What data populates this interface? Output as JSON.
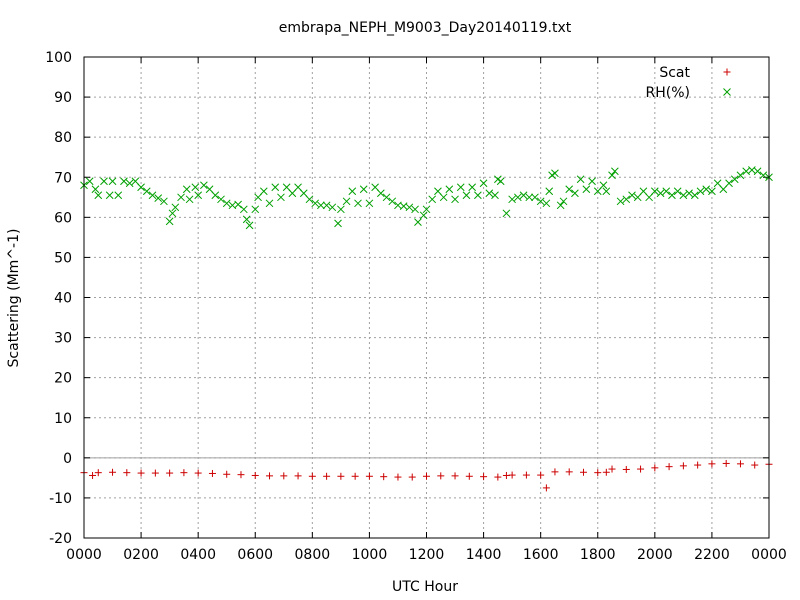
{
  "chart_data": {
    "type": "scatter",
    "title": "embrapa_NEPH_M9003_Day20140119.txt",
    "xlabel": "UTC Hour",
    "ylabel": "Scattering (Mm^-1)",
    "xlim": [
      0,
      24
    ],
    "ylim": [
      -20,
      100
    ],
    "xticks": [
      0,
      2,
      4,
      6,
      8,
      10,
      12,
      14,
      16,
      18,
      20,
      22,
      24
    ],
    "xtick_labels": [
      "0000",
      "0200",
      "0400",
      "0600",
      "0800",
      "1000",
      "1200",
      "1400",
      "1600",
      "1800",
      "2000",
      "2200",
      "0000"
    ],
    "yticks": [
      -20,
      -10,
      0,
      10,
      20,
      30,
      40,
      50,
      60,
      70,
      80,
      90,
      100
    ],
    "grid": true,
    "zero_line": true,
    "legend_position": "top-right",
    "series": [
      {
        "name": "Scat",
        "marker": "plus",
        "color": "#cc0000",
        "points": [
          [
            0.0,
            -3.7
          ],
          [
            0.3,
            -4.4
          ],
          [
            0.5,
            -3.7
          ],
          [
            1.0,
            -3.6
          ],
          [
            1.5,
            -3.7
          ],
          [
            2.0,
            -3.8
          ],
          [
            2.5,
            -3.8
          ],
          [
            3.0,
            -3.8
          ],
          [
            3.5,
            -3.7
          ],
          [
            4.0,
            -3.8
          ],
          [
            4.5,
            -3.9
          ],
          [
            5.0,
            -4.1
          ],
          [
            5.5,
            -4.2
          ],
          [
            6.0,
            -4.4
          ],
          [
            6.5,
            -4.5
          ],
          [
            7.0,
            -4.5
          ],
          [
            7.5,
            -4.5
          ],
          [
            8.0,
            -4.6
          ],
          [
            8.5,
            -4.6
          ],
          [
            9.0,
            -4.6
          ],
          [
            9.5,
            -4.6
          ],
          [
            10.0,
            -4.6
          ],
          [
            10.5,
            -4.7
          ],
          [
            11.0,
            -4.8
          ],
          [
            11.5,
            -4.8
          ],
          [
            12.0,
            -4.6
          ],
          [
            12.5,
            -4.5
          ],
          [
            13.0,
            -4.5
          ],
          [
            13.5,
            -4.6
          ],
          [
            14.0,
            -4.7
          ],
          [
            14.5,
            -4.8
          ],
          [
            14.8,
            -4.4
          ],
          [
            15.0,
            -4.3
          ],
          [
            15.5,
            -4.3
          ],
          [
            16.0,
            -4.3
          ],
          [
            16.2,
            -7.5
          ],
          [
            16.5,
            -3.5
          ],
          [
            17.0,
            -3.5
          ],
          [
            17.5,
            -3.6
          ],
          [
            18.0,
            -3.7
          ],
          [
            18.3,
            -3.6
          ],
          [
            18.5,
            -2.8
          ],
          [
            19.0,
            -2.9
          ],
          [
            19.5,
            -2.8
          ],
          [
            20.0,
            -2.5
          ],
          [
            20.5,
            -2.2
          ],
          [
            21.0,
            -2.0
          ],
          [
            21.5,
            -1.8
          ],
          [
            22.0,
            -1.5
          ],
          [
            22.5,
            -1.4
          ],
          [
            23.0,
            -1.5
          ],
          [
            23.5,
            -1.8
          ],
          [
            24.0,
            -1.6
          ]
        ]
      },
      {
        "name": "RH(%)",
        "marker": "cross",
        "color": "#00a000",
        "points": [
          [
            0.0,
            68.0
          ],
          [
            0.2,
            69.0
          ],
          [
            0.4,
            67.0
          ],
          [
            0.5,
            65.5
          ],
          [
            0.7,
            69.0
          ],
          [
            0.9,
            65.5
          ],
          [
            1.0,
            69.0
          ],
          [
            1.2,
            65.5
          ],
          [
            1.4,
            69.0
          ],
          [
            1.6,
            68.5
          ],
          [
            1.8,
            69.0
          ],
          [
            2.0,
            67.5
          ],
          [
            2.2,
            66.5
          ],
          [
            2.4,
            65.5
          ],
          [
            2.6,
            64.8
          ],
          [
            2.8,
            64.0
          ],
          [
            3.0,
            59.0
          ],
          [
            3.1,
            61.0
          ],
          [
            3.2,
            62.5
          ],
          [
            3.4,
            65.0
          ],
          [
            3.6,
            67.0
          ],
          [
            3.7,
            64.5
          ],
          [
            3.9,
            67.5
          ],
          [
            4.0,
            65.5
          ],
          [
            4.2,
            68.0
          ],
          [
            4.4,
            67.0
          ],
          [
            4.6,
            65.5
          ],
          [
            4.8,
            64.5
          ],
          [
            5.0,
            63.5
          ],
          [
            5.2,
            63.0
          ],
          [
            5.4,
            63.2
          ],
          [
            5.6,
            62.0
          ],
          [
            5.7,
            59.5
          ],
          [
            5.8,
            58.0
          ],
          [
            6.0,
            62.0
          ],
          [
            6.1,
            65.0
          ],
          [
            6.3,
            66.5
          ],
          [
            6.5,
            63.5
          ],
          [
            6.7,
            67.5
          ],
          [
            6.9,
            65.0
          ],
          [
            7.1,
            67.5
          ],
          [
            7.3,
            66.0
          ],
          [
            7.5,
            67.5
          ],
          [
            7.7,
            66.0
          ],
          [
            7.9,
            64.5
          ],
          [
            8.1,
            63.5
          ],
          [
            8.3,
            63.0
          ],
          [
            8.5,
            63.0
          ],
          [
            8.7,
            62.5
          ],
          [
            8.9,
            58.5
          ],
          [
            9.0,
            62.0
          ],
          [
            9.2,
            64.0
          ],
          [
            9.4,
            66.5
          ],
          [
            9.6,
            63.5
          ],
          [
            9.8,
            67.0
          ],
          [
            10.0,
            63.5
          ],
          [
            10.2,
            67.5
          ],
          [
            10.4,
            66.0
          ],
          [
            10.6,
            65.0
          ],
          [
            10.8,
            64.0
          ],
          [
            11.0,
            63.0
          ],
          [
            11.2,
            62.8
          ],
          [
            11.4,
            62.5
          ],
          [
            11.6,
            62.0
          ],
          [
            11.7,
            58.8
          ],
          [
            11.9,
            60.5
          ],
          [
            12.0,
            62.0
          ],
          [
            12.2,
            64.5
          ],
          [
            12.4,
            66.5
          ],
          [
            12.6,
            65.0
          ],
          [
            12.8,
            67.0
          ],
          [
            13.0,
            64.5
          ],
          [
            13.2,
            67.5
          ],
          [
            13.4,
            65.5
          ],
          [
            13.6,
            67.5
          ],
          [
            13.8,
            65.5
          ],
          [
            14.0,
            68.5
          ],
          [
            14.2,
            66.0
          ],
          [
            14.4,
            65.5
          ],
          [
            14.5,
            69.5
          ],
          [
            14.6,
            69.0
          ],
          [
            14.8,
            61.0
          ],
          [
            15.0,
            64.5
          ],
          [
            15.2,
            65.0
          ],
          [
            15.4,
            65.5
          ],
          [
            15.6,
            65.0
          ],
          [
            15.8,
            65.0
          ],
          [
            16.0,
            64.0
          ],
          [
            16.2,
            63.5
          ],
          [
            16.3,
            66.5
          ],
          [
            16.4,
            70.5
          ],
          [
            16.5,
            71.0
          ],
          [
            16.7,
            63.0
          ],
          [
            16.8,
            64.0
          ],
          [
            17.0,
            67.0
          ],
          [
            17.2,
            66.0
          ],
          [
            17.4,
            69.5
          ],
          [
            17.6,
            67.0
          ],
          [
            17.8,
            69.0
          ],
          [
            18.0,
            66.5
          ],
          [
            18.2,
            68.0
          ],
          [
            18.3,
            66.5
          ],
          [
            18.5,
            70.5
          ],
          [
            18.6,
            71.5
          ],
          [
            18.8,
            64.0
          ],
          [
            19.0,
            64.5
          ],
          [
            19.2,
            65.5
          ],
          [
            19.4,
            65.0
          ],
          [
            19.6,
            66.5
          ],
          [
            19.8,
            65.0
          ],
          [
            20.0,
            66.5
          ],
          [
            20.2,
            66.0
          ],
          [
            20.4,
            66.5
          ],
          [
            20.6,
            65.5
          ],
          [
            20.8,
            66.5
          ],
          [
            21.0,
            65.5
          ],
          [
            21.2,
            66.0
          ],
          [
            21.4,
            65.5
          ],
          [
            21.6,
            66.5
          ],
          [
            21.8,
            67.0
          ],
          [
            22.0,
            66.5
          ],
          [
            22.2,
            68.5
          ],
          [
            22.4,
            67.0
          ],
          [
            22.6,
            68.5
          ],
          [
            22.8,
            69.5
          ],
          [
            23.0,
            70.5
          ],
          [
            23.2,
            71.5
          ],
          [
            23.4,
            71.8
          ],
          [
            23.6,
            71.5
          ],
          [
            23.8,
            70.5
          ],
          [
            24.0,
            70.0
          ]
        ]
      }
    ]
  }
}
